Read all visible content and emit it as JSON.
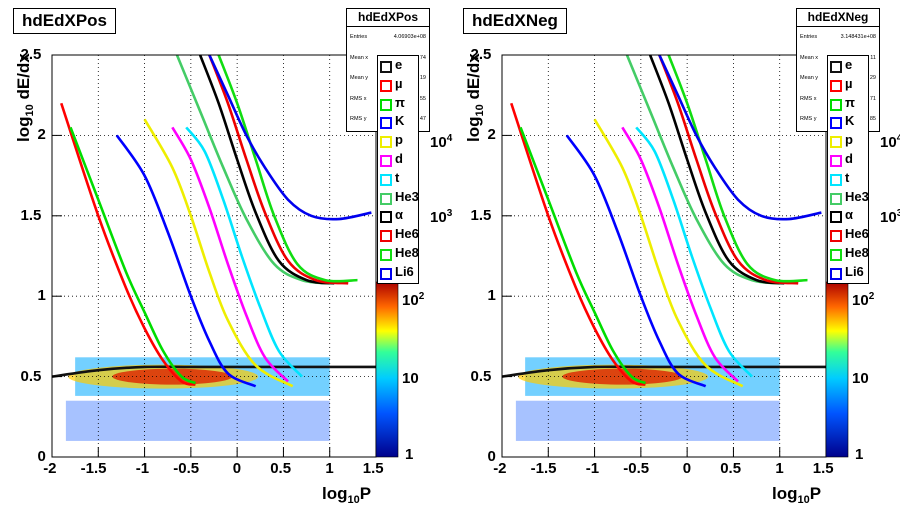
{
  "colors": {
    "e": "#111111",
    "mu": "#ff0000",
    "pi": "#00dd00",
    "K": "#0000ff",
    "p": "#eeee00",
    "d": "#ff00ff",
    "t": "#00e5ff",
    "He3": "#44cc66",
    "alpha": "#000000",
    "He6": "#ee0000",
    "He8": "#11dd11",
    "Li6": "#0000ee"
  },
  "panels": [
    {
      "title": "hdEdXPos",
      "stats": {
        "title": "hdEdXPos",
        "rows": [
          {
            "label": "Entries",
            "value": "4.06903e+08"
          },
          {
            "label": "Mean x",
            "value": "74"
          },
          {
            "label": "Mean y",
            "value": "19"
          },
          {
            "label": "RMS x",
            "value": "55"
          },
          {
            "label": "RMS y",
            "value": "47"
          }
        ]
      },
      "x_label": {
        "main": "log",
        "sub": "10",
        "tail": "P"
      },
      "y_label": {
        "main": "log",
        "sub": "10",
        "tail": " dE/dx"
      }
    },
    {
      "title": "hdEdXNeg",
      "stats": {
        "title": "hdEdXNeg",
        "rows": [
          {
            "label": "Entries",
            "value": "3.148431e+08"
          },
          {
            "label": "Mean x",
            "value": "11"
          },
          {
            "label": "Mean y",
            "value": "29"
          },
          {
            "label": "RMS x",
            "value": "71"
          },
          {
            "label": "RMS y",
            "value": "85"
          }
        ]
      },
      "x_label": {
        "main": "log",
        "sub": "10",
        "tail": "P"
      },
      "y_label": {
        "main": "log",
        "sub": "10",
        "tail": " dE/dx"
      }
    }
  ],
  "legend": [
    {
      "key": "e",
      "label": "e"
    },
    {
      "key": "mu",
      "label": "µ"
    },
    {
      "key": "pi",
      "label": "π"
    },
    {
      "key": "K",
      "label": "K"
    },
    {
      "key": "p",
      "label": "p"
    },
    {
      "key": "d",
      "label": "d"
    },
    {
      "key": "t",
      "label": "t"
    },
    {
      "key": "He3",
      "label": "He3"
    },
    {
      "key": "alpha",
      "label": "α"
    },
    {
      "key": "He6",
      "label": "He6"
    },
    {
      "key": "He8",
      "label": "He8"
    },
    {
      "key": "Li6",
      "label": "Li6"
    }
  ],
  "colorbar": {
    "labels": [
      {
        "text": "1",
        "exp": ""
      },
      {
        "text": "10",
        "exp": ""
      },
      {
        "text": "10",
        "exp": "2"
      },
      {
        "text": "10",
        "exp": "3"
      },
      {
        "text": "10",
        "exp": "4"
      }
    ]
  },
  "chart_data": {
    "type": "heatmap",
    "xlabel": "log10P",
    "ylabel": "log10 dE/dx",
    "xlim": [
      -2,
      1.5
    ],
    "ylim": [
      0,
      2.5
    ],
    "x_ticks": [
      "-2",
      "-1.5",
      "-1",
      "-0.5",
      "0",
      "0.5",
      "1",
      "1.5"
    ],
    "y_ticks": [
      "0",
      "0.5",
      "1",
      "1.5",
      "2",
      "2.5"
    ],
    "z_scale": "log",
    "grid": true,
    "legend_position": "right",
    "bands": [
      {
        "name": "e",
        "x": [
          -2,
          -1.5,
          -1,
          -0.5,
          0,
          0.5,
          1,
          1.5
        ],
        "y": [
          0.5,
          0.54,
          0.56,
          0.56,
          0.56,
          0.56,
          0.56,
          0.56
        ]
      },
      {
        "name": "µ",
        "x": [
          -1.9,
          -1.5,
          -1.2,
          -1.0,
          -0.8,
          -0.6,
          -0.45
        ],
        "y": [
          2.2,
          1.5,
          1.05,
          0.8,
          0.6,
          0.47,
          0.45
        ]
      },
      {
        "name": "π",
        "x": [
          -1.8,
          -1.5,
          -1.2,
          -1.0,
          -0.8,
          -0.6,
          -0.45
        ],
        "y": [
          2.05,
          1.6,
          1.15,
          0.9,
          0.66,
          0.5,
          0.46
        ]
      },
      {
        "name": "K",
        "x": [
          -1.3,
          -1.0,
          -0.75,
          -0.5,
          -0.3,
          -0.1,
          0.2
        ],
        "y": [
          2.0,
          1.75,
          1.4,
          1.0,
          0.72,
          0.52,
          0.44
        ]
      },
      {
        "name": "p",
        "x": [
          -1.0,
          -0.7,
          -0.5,
          -0.3,
          -0.1,
          0.2,
          0.6
        ],
        "y": [
          2.1,
          1.8,
          1.5,
          1.15,
          0.85,
          0.57,
          0.44
        ]
      },
      {
        "name": "d",
        "x": [
          -0.7,
          -0.5,
          -0.3,
          -0.1,
          0.1,
          0.3,
          0.55
        ],
        "y": [
          2.05,
          1.85,
          1.55,
          1.2,
          0.88,
          0.62,
          0.47
        ]
      },
      {
        "name": "t",
        "x": [
          -0.55,
          -0.35,
          -0.15,
          0.05,
          0.25,
          0.45,
          0.7
        ],
        "y": [
          2.05,
          1.9,
          1.6,
          1.25,
          0.93,
          0.66,
          0.5
        ]
      },
      {
        "name": "He3",
        "x": [
          -0.65,
          -0.4,
          -0.15,
          0.1,
          0.4,
          0.7,
          1.0
        ],
        "y": [
          2.5,
          2.15,
          1.8,
          1.48,
          1.2,
          1.1,
          1.08
        ]
      },
      {
        "name": "α",
        "x": [
          -0.4,
          -0.2,
          0.0,
          0.2,
          0.45,
          0.75,
          1.05
        ],
        "y": [
          2.5,
          2.2,
          1.85,
          1.52,
          1.22,
          1.1,
          1.08
        ]
      },
      {
        "name": "He6",
        "x": [
          -0.3,
          -0.1,
          0.1,
          0.3,
          0.55,
          0.85,
          1.2
        ],
        "y": [
          2.5,
          2.2,
          1.85,
          1.52,
          1.22,
          1.1,
          1.08
        ]
      },
      {
        "name": "He8",
        "x": [
          -0.2,
          0.0,
          0.2,
          0.4,
          0.65,
          0.95,
          1.3
        ],
        "y": [
          2.5,
          2.2,
          1.85,
          1.5,
          1.2,
          1.1,
          1.1
        ]
      },
      {
        "name": "Li6",
        "x": [
          -0.3,
          -0.1,
          0.1,
          0.3,
          0.55,
          0.8,
          1.1,
          1.45
        ],
        "y": [
          2.5,
          2.25,
          2.0,
          1.8,
          1.6,
          1.5,
          1.48,
          1.52
        ]
      }
    ]
  }
}
